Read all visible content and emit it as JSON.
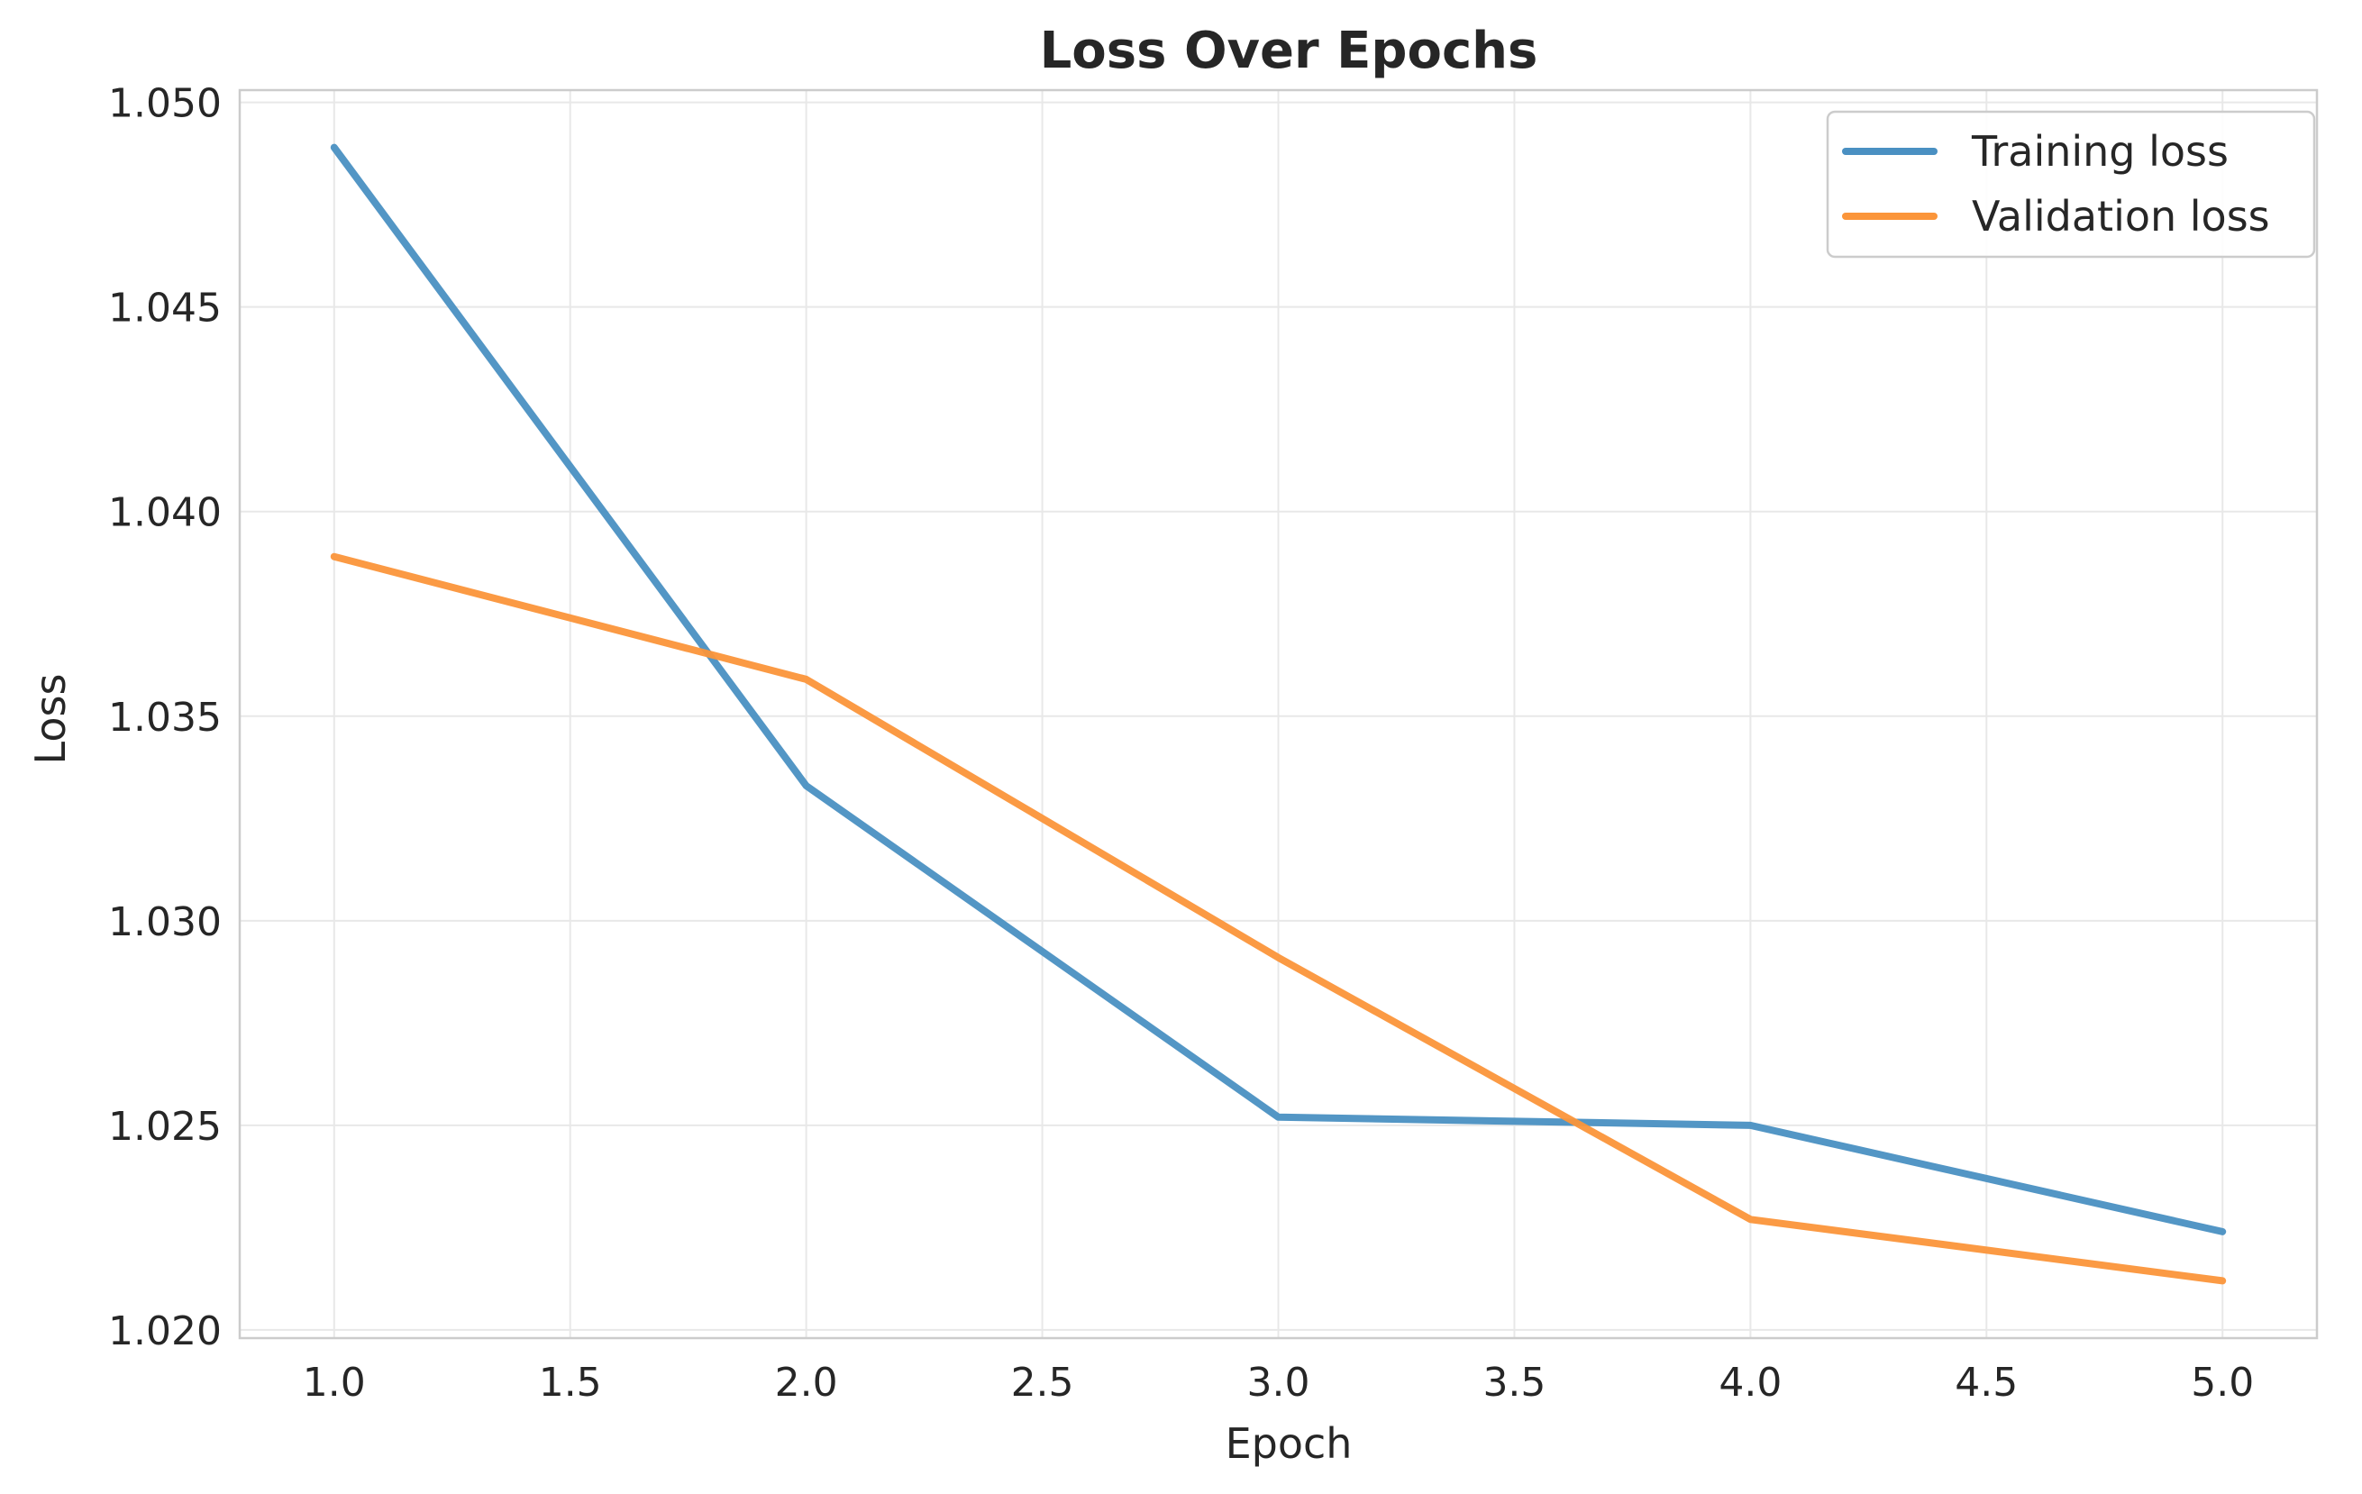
{
  "chart_data": {
    "type": "line",
    "title": "Loss Over Epochs",
    "xlabel": "Epoch",
    "ylabel": "Loss",
    "x": [
      1,
      2,
      3,
      4,
      5
    ],
    "xlim": [
      0.8,
      5.2
    ],
    "ylim": [
      1.0198,
      1.0503
    ],
    "xticks": [
      1.0,
      1.5,
      2.0,
      2.5,
      3.0,
      3.5,
      4.0,
      4.5,
      5.0
    ],
    "xtick_labels": [
      "1.0",
      "1.5",
      "2.0",
      "2.5",
      "3.0",
      "3.5",
      "4.0",
      "4.5",
      "5.0"
    ],
    "yticks": [
      1.02,
      1.025,
      1.03,
      1.035,
      1.04,
      1.045,
      1.05
    ],
    "ytick_labels": [
      "1.020",
      "1.025",
      "1.030",
      "1.035",
      "1.040",
      "1.045",
      "1.050"
    ],
    "grid": true,
    "legend_position": "top-right",
    "series": [
      {
        "name": "Training loss",
        "color": "#4a90c2",
        "values": [
          1.0489,
          1.0333,
          1.0252,
          1.025,
          1.0224
        ]
      },
      {
        "name": "Validation loss",
        "color": "#fb953a",
        "values": [
          1.0389,
          1.0359,
          1.0291,
          1.0227,
          1.0212
        ]
      }
    ]
  }
}
